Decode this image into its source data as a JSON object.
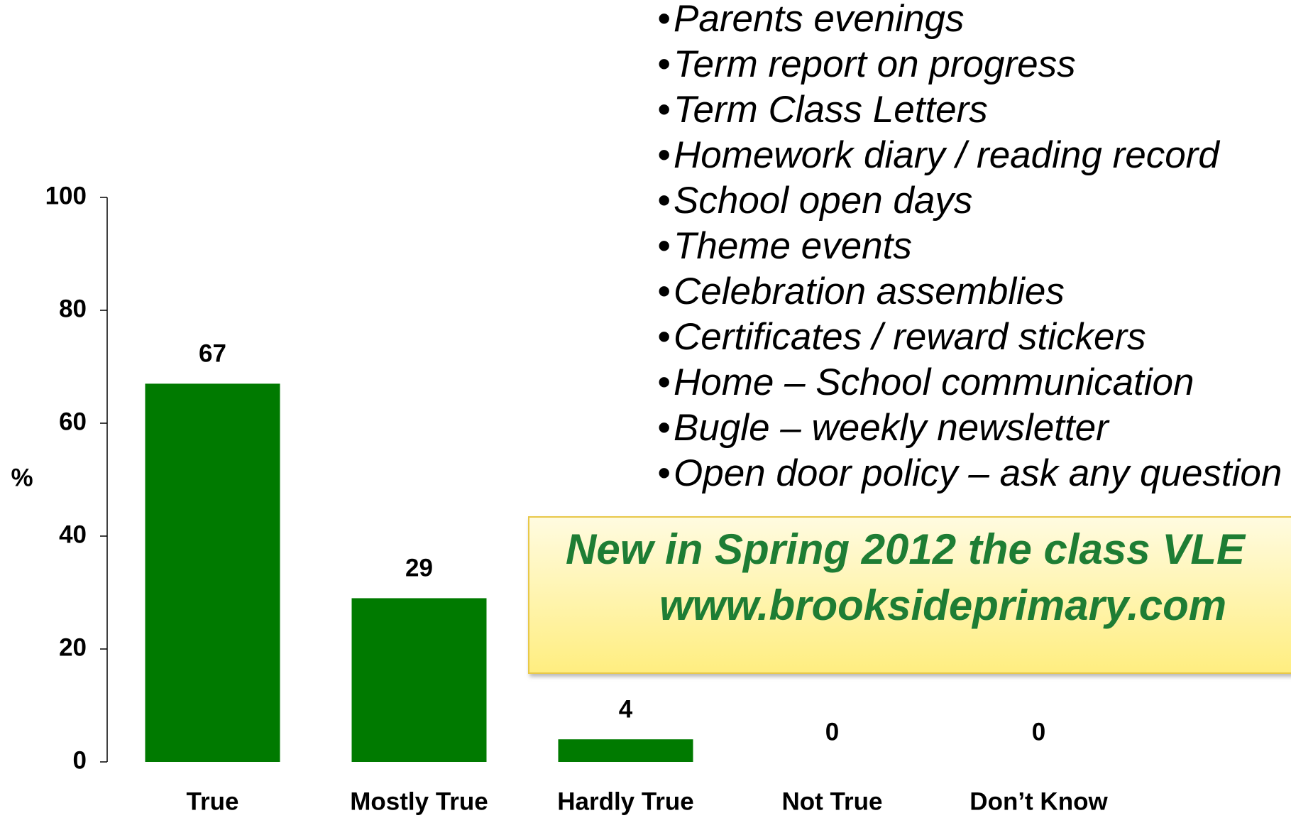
{
  "chart_data": {
    "type": "bar",
    "y_label": "%",
    "categories": [
      "True",
      "Mostly True",
      "Hardly True",
      "Not True",
      "Don’t Know"
    ],
    "values": [
      67,
      29,
      4,
      0,
      0
    ],
    "color": "#007a00",
    "ylim": [
      0,
      100
    ],
    "yticks": [
      0,
      20,
      40,
      60,
      80,
      100
    ],
    "grid": false
  },
  "bullets": [
    "Parents evenings",
    "Term report on progress",
    "Term Class Letters",
    "Homework diary / reading record",
    "School open days",
    "Theme events",
    "Celebration assemblies",
    "Certificates / reward stickers",
    "Home – School communication",
    "Bugle – weekly newsletter",
    "Open door policy – ask any question"
  ],
  "callout": {
    "line1": "New in Spring 2012 the class VLE",
    "line2": "www.brooksideprimary.com"
  }
}
